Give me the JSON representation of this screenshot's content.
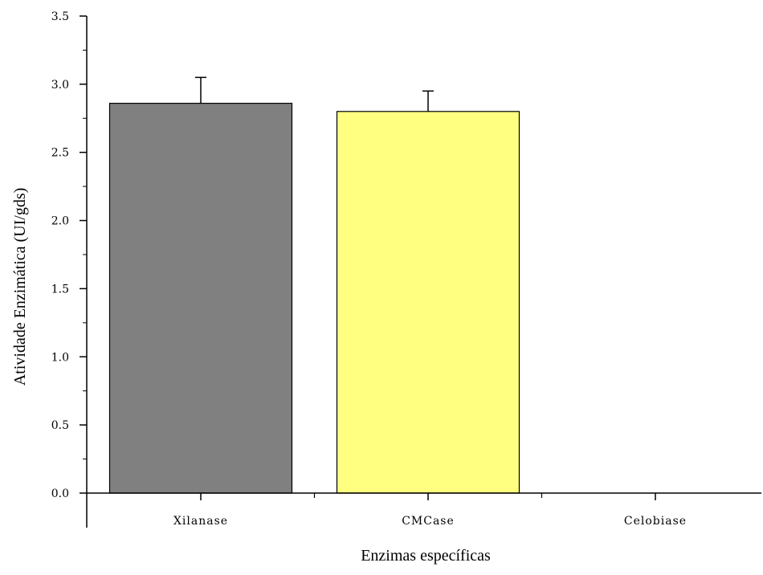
{
  "chart_data": {
    "type": "bar",
    "title": "",
    "xlabel": "Enzimas específicas",
    "ylabel": "Atividade Enzimática (UI/gds)",
    "ylim": [
      0,
      3.5
    ],
    "yticks": [
      "0.0",
      "0.5",
      "1.0",
      "1.5",
      "2.0",
      "2.5",
      "3.0",
      "3.5"
    ],
    "ytick_values": [
      0,
      0.5,
      1.0,
      1.5,
      2.0,
      2.5,
      3.0,
      3.5
    ],
    "categories": [
      "Xilanase",
      "CMCase",
      "Celobiase"
    ],
    "values": [
      2.86,
      2.8,
      0.0
    ],
    "errors": [
      0.19,
      0.15,
      0.0
    ],
    "bar_colors": [
      "#808080",
      "#ffff80",
      "#ffffff"
    ],
    "grid": false,
    "legend": "none"
  }
}
